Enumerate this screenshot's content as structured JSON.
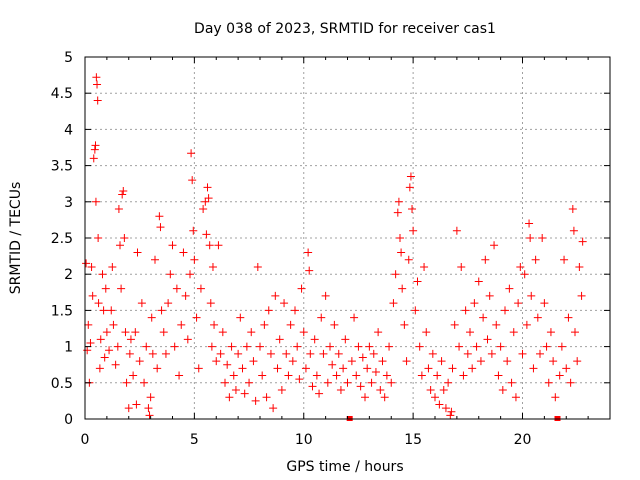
{
  "chart_data": {
    "type": "scatter",
    "title": "Day 038 of 2023, SRMTID for receiver cas1",
    "xlabel": "GPS time / hours",
    "ylabel": "SRMTID / TECUs",
    "xlim": [
      0,
      24
    ],
    "ylim": [
      0,
      5
    ],
    "xticks": [
      0,
      5,
      10,
      15,
      20
    ],
    "xtick_labels": [
      "0",
      "5",
      "10",
      "15",
      "20"
    ],
    "yticks": [
      0,
      0.5,
      1,
      1.5,
      2,
      2.5,
      3,
      3.5,
      4,
      4.5,
      5
    ],
    "ytick_labels": [
      "0",
      "0.5",
      "1",
      "1.5",
      "2",
      "2.5",
      "3",
      "3.5",
      "4",
      "4.5",
      "5"
    ],
    "grid": true,
    "marker": "+",
    "color": "#ff0000",
    "zero_markers": [
      12.1,
      21.6
    ],
    "series": [
      {
        "name": "SRMTID",
        "points": [
          [
            0.05,
            2.15
          ],
          [
            0.1,
            0.95
          ],
          [
            0.15,
            1.3
          ],
          [
            0.2,
            0.5
          ],
          [
            0.25,
            1.05
          ],
          [
            0.3,
            2.1
          ],
          [
            0.35,
            1.7
          ],
          [
            0.4,
            3.6
          ],
          [
            0.45,
            3.72
          ],
          [
            0.48,
            3.78
          ],
          [
            0.5,
            3.0
          ],
          [
            0.52,
            4.72
          ],
          [
            0.55,
            4.62
          ],
          [
            0.58,
            4.4
          ],
          [
            0.6,
            2.5
          ],
          [
            0.62,
            1.6
          ],
          [
            0.68,
            0.7
          ],
          [
            0.72,
            1.1
          ],
          [
            0.8,
            2.0
          ],
          [
            0.85,
            1.5
          ],
          [
            0.9,
            0.85
          ],
          [
            0.95,
            1.8
          ],
          [
            1.0,
            1.2
          ],
          [
            1.1,
            0.95
          ],
          [
            1.2,
            1.5
          ],
          [
            1.25,
            2.1
          ],
          [
            1.3,
            1.3
          ],
          [
            1.4,
            0.75
          ],
          [
            1.5,
            1.0
          ],
          [
            1.55,
            2.9
          ],
          [
            1.6,
            2.4
          ],
          [
            1.65,
            1.8
          ],
          [
            1.7,
            3.1
          ],
          [
            1.75,
            3.15
          ],
          [
            1.8,
            2.5
          ],
          [
            1.85,
            1.2
          ],
          [
            1.9,
            0.5
          ],
          [
            2.0,
            0.15
          ],
          [
            2.05,
            0.9
          ],
          [
            2.1,
            1.1
          ],
          [
            2.2,
            0.6
          ],
          [
            2.3,
            1.2
          ],
          [
            2.35,
            0.2
          ],
          [
            2.4,
            2.3
          ],
          [
            2.5,
            0.8
          ],
          [
            2.6,
            1.6
          ],
          [
            2.7,
            0.5
          ],
          [
            2.8,
            1.0
          ],
          [
            2.9,
            0.15
          ],
          [
            2.95,
            0.05
          ],
          [
            3.0,
            0.3
          ],
          [
            3.05,
            1.4
          ],
          [
            3.1,
            0.9
          ],
          [
            3.2,
            2.2
          ],
          [
            3.3,
            0.7
          ],
          [
            3.4,
            2.8
          ],
          [
            3.45,
            2.65
          ],
          [
            3.5,
            1.5
          ],
          [
            3.6,
            1.2
          ],
          [
            3.7,
            0.9
          ],
          [
            3.8,
            1.6
          ],
          [
            3.9,
            2.0
          ],
          [
            4.0,
            2.4
          ],
          [
            4.1,
            1.0
          ],
          [
            4.2,
            1.8
          ],
          [
            4.3,
            0.6
          ],
          [
            4.4,
            1.3
          ],
          [
            4.5,
            2.3
          ],
          [
            4.6,
            1.7
          ],
          [
            4.7,
            1.1
          ],
          [
            4.8,
            2.0
          ],
          [
            4.85,
            3.67
          ],
          [
            4.9,
            3.3
          ],
          [
            4.95,
            2.6
          ],
          [
            5.0,
            2.2
          ],
          [
            5.1,
            1.4
          ],
          [
            5.2,
            0.7
          ],
          [
            5.3,
            1.8
          ],
          [
            5.4,
            2.9
          ],
          [
            5.5,
            3.0
          ],
          [
            5.55,
            2.55
          ],
          [
            5.6,
            3.2
          ],
          [
            5.65,
            3.05
          ],
          [
            5.7,
            2.4
          ],
          [
            5.75,
            1.6
          ],
          [
            5.8,
            1.0
          ],
          [
            5.85,
            2.1
          ],
          [
            5.9,
            1.3
          ],
          [
            6.0,
            0.8
          ],
          [
            6.1,
            2.4
          ],
          [
            6.2,
            0.9
          ],
          [
            6.3,
            1.2
          ],
          [
            6.4,
            0.5
          ],
          [
            6.5,
            0.75
          ],
          [
            6.6,
            0.3
          ],
          [
            6.7,
            1.0
          ],
          [
            6.8,
            0.6
          ],
          [
            6.9,
            0.4
          ],
          [
            7.0,
            0.9
          ],
          [
            7.1,
            1.4
          ],
          [
            7.2,
            0.7
          ],
          [
            7.3,
            0.35
          ],
          [
            7.4,
            1.0
          ],
          [
            7.5,
            0.5
          ],
          [
            7.6,
            1.2
          ],
          [
            7.7,
            0.8
          ],
          [
            7.8,
            0.25
          ],
          [
            7.9,
            2.1
          ],
          [
            8.0,
            1.0
          ],
          [
            8.1,
            0.6
          ],
          [
            8.2,
            1.3
          ],
          [
            8.3,
            0.3
          ],
          [
            8.4,
            1.5
          ],
          [
            8.5,
            0.9
          ],
          [
            8.6,
            0.15
          ],
          [
            8.7,
            1.7
          ],
          [
            8.8,
            0.7
          ],
          [
            8.9,
            1.1
          ],
          [
            9.0,
            0.4
          ],
          [
            9.1,
            1.6
          ],
          [
            9.2,
            0.9
          ],
          [
            9.3,
            0.6
          ],
          [
            9.4,
            1.3
          ],
          [
            9.5,
            0.8
          ],
          [
            9.6,
            1.5
          ],
          [
            9.7,
            1.0
          ],
          [
            9.8,
            0.55
          ],
          [
            9.9,
            1.8
          ],
          [
            10.0,
            1.2
          ],
          [
            10.1,
            0.7
          ],
          [
            10.2,
            2.3
          ],
          [
            10.25,
            2.05
          ],
          [
            10.3,
            0.9
          ],
          [
            10.4,
            0.45
          ],
          [
            10.5,
            1.1
          ],
          [
            10.6,
            0.6
          ],
          [
            10.7,
            0.35
          ],
          [
            10.8,
            1.4
          ],
          [
            10.9,
            0.9
          ],
          [
            11.0,
            1.7
          ],
          [
            11.1,
            0.5
          ],
          [
            11.2,
            1.0
          ],
          [
            11.3,
            0.75
          ],
          [
            11.4,
            1.3
          ],
          [
            11.5,
            0.6
          ],
          [
            11.6,
            0.9
          ],
          [
            11.7,
            0.4
          ],
          [
            11.8,
            0.7
          ],
          [
            11.9,
            1.1
          ],
          [
            12.0,
            0.5
          ],
          [
            12.2,
            0.8
          ],
          [
            12.3,
            1.4
          ],
          [
            12.4,
            0.6
          ],
          [
            12.5,
            1.0
          ],
          [
            12.6,
            0.45
          ],
          [
            12.7,
            0.85
          ],
          [
            12.8,
            0.3
          ],
          [
            12.9,
            0.7
          ],
          [
            13.0,
            1.0
          ],
          [
            13.1,
            0.5
          ],
          [
            13.2,
            0.9
          ],
          [
            13.3,
            0.65
          ],
          [
            13.4,
            1.2
          ],
          [
            13.5,
            0.4
          ],
          [
            13.6,
            0.8
          ],
          [
            13.7,
            0.3
          ],
          [
            13.8,
            0.6
          ],
          [
            13.9,
            1.0
          ],
          [
            14.0,
            0.5
          ],
          [
            14.1,
            1.6
          ],
          [
            14.2,
            2.0
          ],
          [
            14.3,
            2.85
          ],
          [
            14.35,
            3.0
          ],
          [
            14.4,
            2.5
          ],
          [
            14.45,
            2.3
          ],
          [
            14.5,
            1.8
          ],
          [
            14.6,
            1.3
          ],
          [
            14.7,
            0.8
          ],
          [
            14.8,
            2.2
          ],
          [
            14.85,
            3.2
          ],
          [
            14.9,
            3.35
          ],
          [
            14.95,
            2.9
          ],
          [
            15.0,
            2.6
          ],
          [
            15.1,
            1.5
          ],
          [
            15.2,
            1.9
          ],
          [
            15.3,
            1.0
          ],
          [
            15.4,
            0.6
          ],
          [
            15.5,
            2.1
          ],
          [
            15.6,
            1.2
          ],
          [
            15.7,
            0.7
          ],
          [
            15.8,
            0.4
          ],
          [
            15.9,
            0.9
          ],
          [
            16.0,
            0.3
          ],
          [
            16.1,
            0.6
          ],
          [
            16.2,
            0.2
          ],
          [
            16.3,
            0.8
          ],
          [
            16.4,
            0.4
          ],
          [
            16.5,
            0.15
          ],
          [
            16.6,
            0.5
          ],
          [
            16.7,
            0.05
          ],
          [
            16.75,
            0.1
          ],
          [
            16.8,
            0.7
          ],
          [
            16.9,
            1.3
          ],
          [
            17.0,
            2.6
          ],
          [
            17.1,
            1.0
          ],
          [
            17.2,
            2.1
          ],
          [
            17.3,
            0.6
          ],
          [
            17.4,
            1.5
          ],
          [
            17.5,
            0.9
          ],
          [
            17.6,
            1.2
          ],
          [
            17.7,
            0.7
          ],
          [
            17.8,
            1.6
          ],
          [
            17.9,
            1.0
          ],
          [
            18.0,
            1.9
          ],
          [
            18.1,
            0.8
          ],
          [
            18.2,
            1.4
          ],
          [
            18.3,
            2.2
          ],
          [
            18.4,
            1.1
          ],
          [
            18.5,
            1.7
          ],
          [
            18.6,
            0.9
          ],
          [
            18.7,
            2.4
          ],
          [
            18.8,
            1.3
          ],
          [
            18.9,
            0.6
          ],
          [
            19.0,
            1.0
          ],
          [
            19.1,
            0.4
          ],
          [
            19.2,
            1.5
          ],
          [
            19.3,
            0.8
          ],
          [
            19.4,
            1.8
          ],
          [
            19.5,
            0.5
          ],
          [
            19.6,
            1.2
          ],
          [
            19.7,
            0.3
          ],
          [
            19.8,
            1.6
          ],
          [
            19.9,
            2.1
          ],
          [
            20.0,
            0.9
          ],
          [
            20.1,
            2.0
          ],
          [
            20.2,
            1.3
          ],
          [
            20.3,
            2.7
          ],
          [
            20.35,
            2.5
          ],
          [
            20.4,
            1.7
          ],
          [
            20.5,
            0.7
          ],
          [
            20.6,
            2.2
          ],
          [
            20.7,
            1.4
          ],
          [
            20.8,
            0.9
          ],
          [
            20.9,
            2.5
          ],
          [
            21.0,
            1.6
          ],
          [
            21.1,
            1.0
          ],
          [
            21.2,
            0.5
          ],
          [
            21.3,
            1.2
          ],
          [
            21.4,
            0.8
          ],
          [
            21.5,
            0.3
          ],
          [
            21.7,
            0.6
          ],
          [
            21.8,
            1.0
          ],
          [
            21.9,
            2.2
          ],
          [
            22.0,
            0.7
          ],
          [
            22.1,
            1.4
          ],
          [
            22.2,
            0.5
          ],
          [
            22.3,
            2.9
          ],
          [
            22.35,
            2.6
          ],
          [
            22.4,
            1.2
          ],
          [
            22.5,
            0.8
          ],
          [
            22.6,
            2.1
          ],
          [
            22.7,
            1.7
          ],
          [
            22.75,
            2.45
          ]
        ]
      }
    ]
  }
}
